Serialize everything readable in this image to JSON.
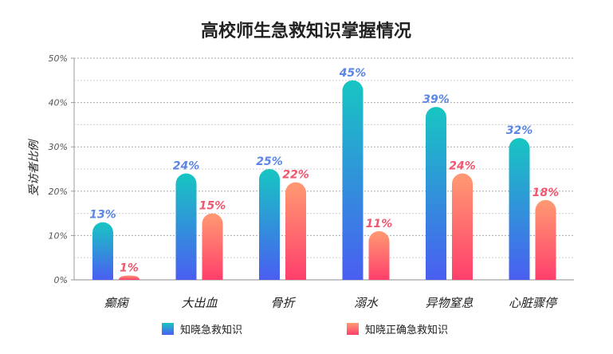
{
  "chart_data": {
    "type": "bar",
    "title": "高校师生急救知识掌握情况",
    "xlabel": "",
    "ylabel": "受访者比例",
    "ylim": [
      0,
      50
    ],
    "yticks": [
      "0%",
      "10%",
      "20%",
      "30%",
      "40%",
      "50%"
    ],
    "categories": [
      "癫痫",
      "大出血",
      "骨折",
      "溺水",
      "异物窒息",
      "心脏骤停"
    ],
    "series": [
      {
        "name": "知晓急救知识",
        "values": [
          13,
          24,
          25,
          45,
          39,
          32
        ],
        "labels": [
          "13%",
          "24%",
          "25%",
          "45%",
          "39%",
          "32%"
        ],
        "color_top": "#17c6c2",
        "color_bottom": "#4a5ef2",
        "label_color": "#5b86e5"
      },
      {
        "name": "知晓正确急救知识",
        "values": [
          1,
          15,
          22,
          11,
          24,
          18
        ],
        "labels": [
          "1%",
          "15%",
          "22%",
          "11%",
          "24%",
          "18%"
        ],
        "color_top": "#ff9a72",
        "color_bottom": "#ff3f6c",
        "label_color": "#f0566e"
      }
    ],
    "grid": true,
    "legend_position": "bottom"
  }
}
